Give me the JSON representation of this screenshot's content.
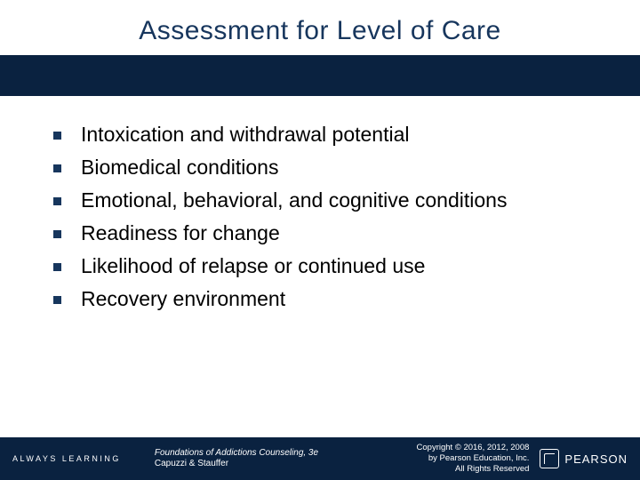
{
  "title": "Assessment for Level of Care",
  "bullets": [
    "Intoxication and withdrawal potential",
    "Biomedical conditions",
    "Emotional, behavioral, and cognitive conditions",
    "Readiness for change",
    "Likelihood of relapse or continued use",
    "Recovery environment"
  ],
  "footer": {
    "left_brand": "ALWAYS LEARNING",
    "center_line1": "Foundations of Addictions Counseling, 3e",
    "center_line2": "Capuzzi & Stauffer",
    "right_line1": "Copyright © 2016, 2012, 2008",
    "right_line2": "by Pearson Education, Inc.",
    "right_line3": "All Rights Reserved",
    "logo_text": "PEARSON"
  },
  "colors": {
    "navy": "#0a2240",
    "title_color": "#17365d",
    "bg": "#ffffff",
    "text": "#000000",
    "footer_text": "#ffffff"
  }
}
